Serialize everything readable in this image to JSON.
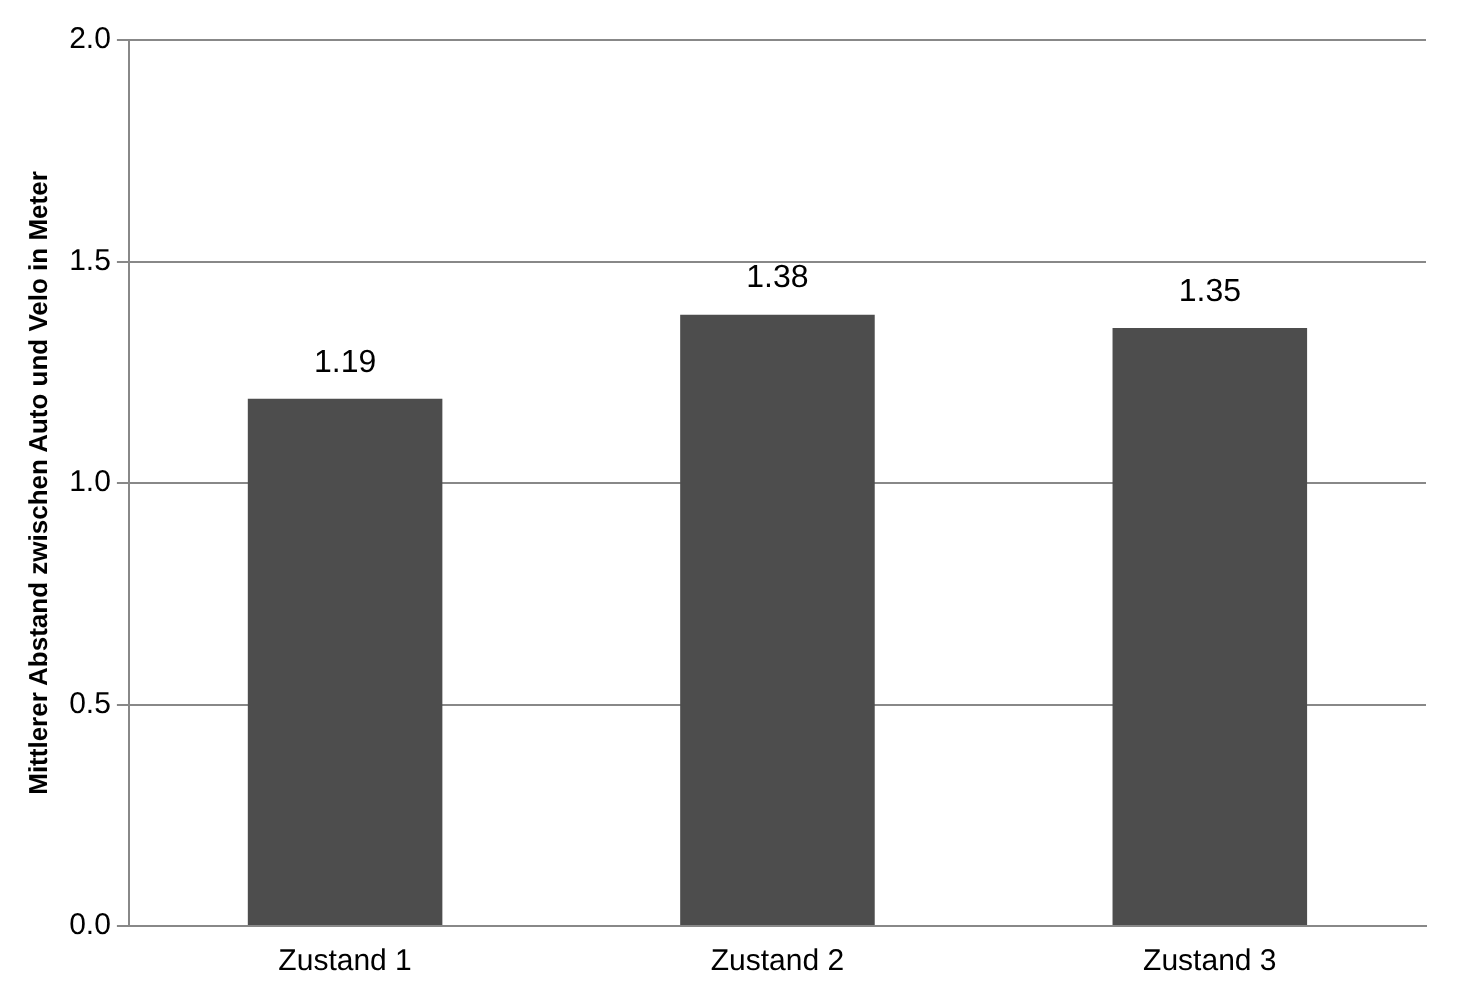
{
  "chart_data": {
    "type": "bar",
    "ylabel": "Mittlerer Abstand zwischen Auto und Velo in Meter",
    "categories": [
      "Zustand 1",
      "Zustand 2",
      "Zustand 3"
    ],
    "values": [
      1.19,
      1.38,
      1.35
    ],
    "color": "#4d4d4d",
    "ylim": [
      0,
      2
    ],
    "yticks": [
      "0.0",
      "0.5",
      "1.0",
      "1.5",
      "2.0"
    ],
    "grid": "y",
    "data_labels": true,
    "legend": false
  }
}
